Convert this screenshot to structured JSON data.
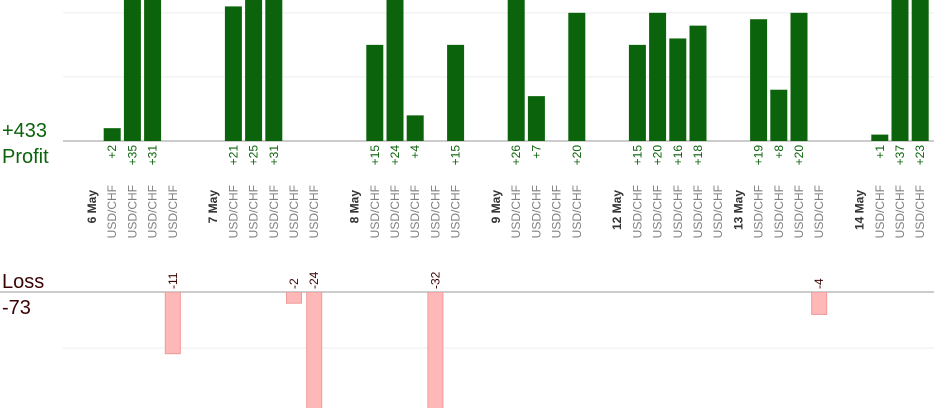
{
  "chart_data": {
    "type": "bar",
    "profit_total": "+433",
    "profit_label": "Profit",
    "loss_label": "Loss",
    "loss_total": "-73",
    "profit_color": "#0b630b",
    "loss_color": "#ffb8b8",
    "profit_ylim": [
      0,
      22
    ],
    "profit_yticks": [
      10,
      20
    ],
    "loss_ylim": [
      0,
      -20.5
    ],
    "loss_yticks": [
      -10
    ],
    "groups": [
      {
        "label": "6 May",
        "categories": [
          "USD/CHF",
          "USD/CHF",
          "USD/CHF",
          "USD/CHF"
        ],
        "values": [
          2,
          35,
          31,
          -11
        ],
        "value_labels": [
          "+2",
          "+35",
          "+31",
          "-11"
        ]
      },
      {
        "label": "7 May",
        "categories": [
          "USD/CHF",
          "USD/CHF",
          "USD/CHF",
          "USD/CHF",
          "USD/CHF"
        ],
        "values": [
          21,
          25,
          31,
          -2,
          -24
        ],
        "value_labels": [
          "+21",
          "+25",
          "+31",
          "-2",
          "-24"
        ]
      },
      {
        "label": "8 May",
        "categories": [
          "USD/CHF",
          "USD/CHF",
          "USD/CHF",
          "USD/CHF",
          "USD/CHF"
        ],
        "values": [
          15,
          24,
          4,
          -32,
          15
        ],
        "value_labels": [
          "+15",
          "+24",
          "+4",
          "-32",
          "+15"
        ]
      },
      {
        "label": "9 May",
        "categories": [
          "USD/CHF",
          "USD/CHF",
          "USD/CHF",
          "USD/CHF"
        ],
        "values": [
          26,
          7,
          null,
          20
        ],
        "value_labels": [
          "+26",
          "+7",
          null,
          "+20"
        ]
      },
      {
        "label": "12 May",
        "categories": [
          "USD/CHF",
          "USD/CHF",
          "USD/CHF",
          "USD/CHF",
          "USD/CHF"
        ],
        "values": [
          15,
          20,
          16,
          18,
          null
        ],
        "value_labels": [
          "+15",
          "+20",
          "+16",
          "+18",
          null
        ]
      },
      {
        "label": "13 May",
        "categories": [
          "USD/CHF",
          "USD/CHF",
          "USD/CHF",
          "USD/CHF"
        ],
        "values": [
          19,
          8,
          20,
          -4
        ],
        "value_labels": [
          "+19",
          "+8",
          "+20",
          "-4"
        ]
      },
      {
        "label": "14 May",
        "categories": [
          "USD/CHF",
          "USD/CHF",
          "USD/CHF"
        ],
        "values": [
          1,
          37,
          23
        ],
        "value_labels": [
          "+1",
          "+37",
          "+23"
        ]
      }
    ]
  }
}
